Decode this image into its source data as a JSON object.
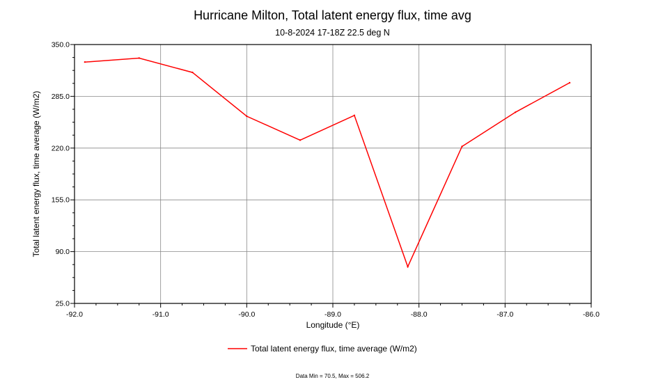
{
  "chart_data": {
    "type": "line",
    "title": "Hurricane Milton, Total latent energy flux, time avg",
    "subtitle": "10-8-2024 17-18Z 22.5 deg N",
    "xlabel": "Longitude (°E)",
    "ylabel": "Total latent energy flux, time average (W/m2)",
    "xlim": [
      -92.0,
      -86.0
    ],
    "ylim": [
      25.0,
      350.0
    ],
    "xticks": [
      -92.0,
      -91.0,
      -90.0,
      -89.0,
      -88.0,
      -87.0,
      -86.0
    ],
    "xtick_labels": [
      "-92.0",
      "-91.0",
      "-90.0",
      "-89.0",
      "-88.0",
      "-87.0",
      "-86.0"
    ],
    "yticks": [
      25.0,
      90.0,
      155.0,
      220.0,
      285.0,
      350.0
    ],
    "ytick_labels": [
      "25.0",
      "90.0",
      "155.0",
      "220.0",
      "285.0",
      "350.0"
    ],
    "grid": true,
    "legend_position": "bottom",
    "series": [
      {
        "name": "Total latent energy flux, time average (W/m2)",
        "color": "#ff0000",
        "x": [
          -91.88,
          -91.25,
          -90.63,
          -90.0,
          -89.38,
          -88.75,
          -88.13,
          -87.5,
          -86.88,
          -86.25
        ],
        "y": [
          328,
          333,
          315,
          260,
          230,
          261,
          71,
          222,
          265,
          302
        ]
      }
    ],
    "footer": "Data Min = 70.5, Max = 506.2"
  }
}
